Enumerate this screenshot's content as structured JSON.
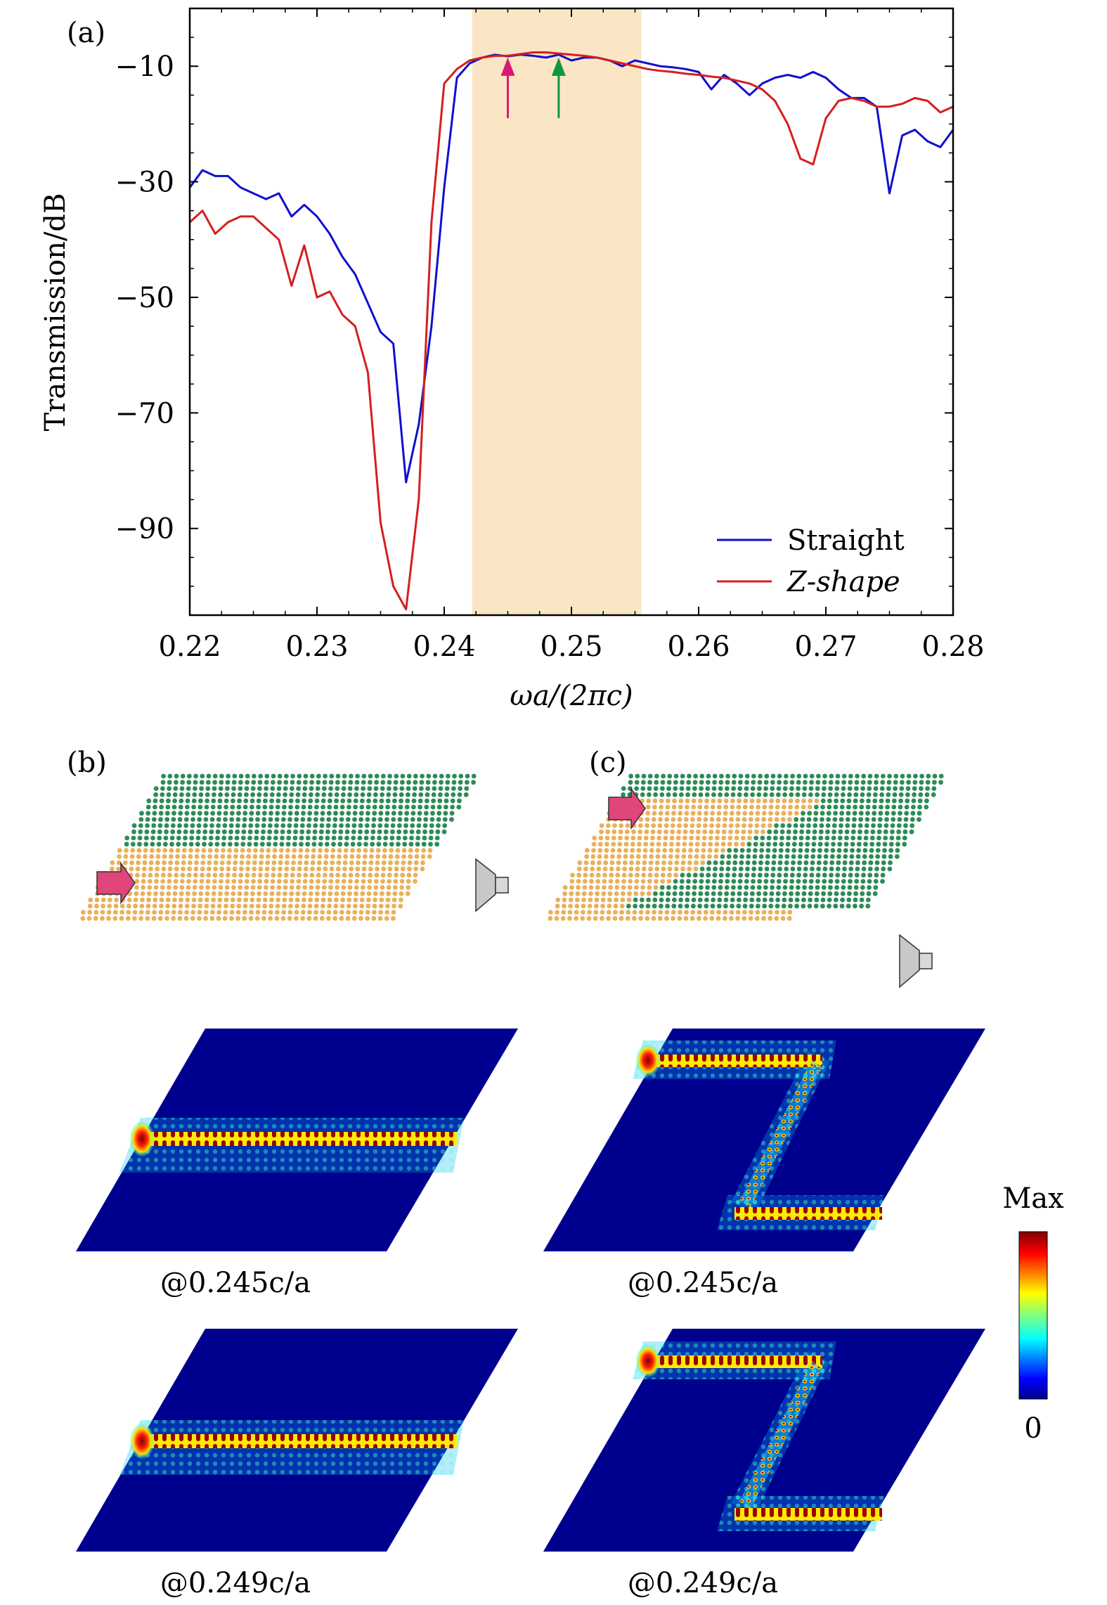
{
  "chart_data": [
    {
      "type": "line",
      "panel_label": "(a)",
      "xlabel": "ωa/(2πc)",
      "ylabel": "Transmission/dB",
      "xlim": [
        0.22,
        0.28
      ],
      "ylim": [
        -105,
        0
      ],
      "x_ticks": [
        0.22,
        0.23,
        0.24,
        0.25,
        0.26,
        0.27,
        0.28
      ],
      "x_tick_labels": [
        "0.22",
        "0.23",
        "0.24",
        "0.25",
        "0.26",
        "0.27",
        "0.28"
      ],
      "y_ticks": [
        -10,
        -30,
        -50,
        -70,
        -90
      ],
      "y_tick_labels": [
        "−10",
        "−30",
        "−50",
        "−70",
        "−90"
      ],
      "grid": false,
      "legend_position": "bottom-right",
      "highlight_band": {
        "x": [
          0.2422,
          0.2555
        ],
        "color": "#fae6c5"
      },
      "arrows": [
        {
          "x": 0.245,
          "from": -19,
          "to": -8.5,
          "color": "#d81b72"
        },
        {
          "x": 0.249,
          "from": -19,
          "to": -8.5,
          "color": "#11953f"
        }
      ],
      "series": [
        {
          "name": "Straight",
          "color": "#0f0fcf",
          "x": [
            0.22,
            0.221,
            0.222,
            0.223,
            0.224,
            0.225,
            0.226,
            0.227,
            0.228,
            0.229,
            0.23,
            0.231,
            0.232,
            0.233,
            0.234,
            0.235,
            0.236,
            0.237,
            0.238,
            0.239,
            0.24,
            0.241,
            0.242,
            0.243,
            0.244,
            0.245,
            0.246,
            0.247,
            0.248,
            0.249,
            0.25,
            0.251,
            0.252,
            0.253,
            0.254,
            0.255,
            0.256,
            0.257,
            0.258,
            0.259,
            0.26,
            0.261,
            0.262,
            0.263,
            0.264,
            0.265,
            0.266,
            0.267,
            0.268,
            0.269,
            0.27,
            0.271,
            0.272,
            0.273,
            0.274,
            0.275,
            0.276,
            0.277,
            0.278,
            0.279,
            0.28
          ],
          "values": [
            -31,
            -28,
            -29,
            -29,
            -31,
            -32,
            -33,
            -32,
            -36,
            -34,
            -36,
            -39,
            -43,
            -46,
            -51,
            -56,
            -58,
            -82,
            -72,
            -55,
            -31,
            -12,
            -9.5,
            -8.5,
            -8,
            -8.3,
            -8,
            -8.2,
            -8.5,
            -8,
            -9,
            -8.5,
            -8.5,
            -9,
            -10,
            -9,
            -9.5,
            -10,
            -10.2,
            -10.5,
            -11,
            -14,
            -11.5,
            -13,
            -15,
            -13,
            -12,
            -11.5,
            -12,
            -11,
            -12,
            -14,
            -15.5,
            -15.5,
            -17,
            -32,
            -22,
            -21,
            -23,
            -24,
            -21
          ]
        },
        {
          "name": "Z-shape",
          "color": "#d41f1f",
          "x": [
            0.22,
            0.221,
            0.222,
            0.223,
            0.224,
            0.225,
            0.226,
            0.227,
            0.228,
            0.229,
            0.23,
            0.231,
            0.232,
            0.233,
            0.234,
            0.235,
            0.236,
            0.237,
            0.238,
            0.239,
            0.24,
            0.241,
            0.242,
            0.243,
            0.244,
            0.245,
            0.246,
            0.247,
            0.248,
            0.249,
            0.25,
            0.251,
            0.252,
            0.253,
            0.254,
            0.255,
            0.256,
            0.257,
            0.258,
            0.259,
            0.26,
            0.261,
            0.262,
            0.263,
            0.264,
            0.265,
            0.266,
            0.267,
            0.268,
            0.269,
            0.27,
            0.271,
            0.272,
            0.273,
            0.274,
            0.275,
            0.276,
            0.277,
            0.278,
            0.279,
            0.28
          ],
          "values": [
            -37,
            -35,
            -39,
            -37,
            -36,
            -36,
            -38,
            -40,
            -48,
            -41,
            -50,
            -49,
            -53,
            -55,
            -63,
            -89,
            -100,
            -104,
            -85,
            -37,
            -13,
            -10.5,
            -9,
            -8.5,
            -8.2,
            -8.2,
            -7.9,
            -7.6,
            -7.6,
            -7.8,
            -8,
            -8.2,
            -8.5,
            -9,
            -9.5,
            -10,
            -10.5,
            -10.8,
            -11,
            -11.3,
            -11.5,
            -11.8,
            -12,
            -12.5,
            -13,
            -14,
            -16,
            -20,
            -26,
            -27,
            -19,
            -16,
            -15.5,
            -16,
            -17,
            -17,
            -16.5,
            -15.5,
            -16,
            -18,
            -17
          ]
        }
      ]
    }
  ],
  "panels": {
    "b": {
      "label": "(b)",
      "captions": [
        "@0.245c/a",
        "@0.249c/a"
      ]
    },
    "c": {
      "label": "(c)",
      "captions": [
        "@0.245c/a",
        "@0.249c/a"
      ]
    }
  },
  "colorbar": {
    "max_label": "Max",
    "min_label": "0"
  },
  "colors": {
    "green_lattice": "#2e8b57",
    "orange_lattice": "#e8b15c",
    "source_arrow": "#e0457b",
    "field_background": "#00008f"
  }
}
